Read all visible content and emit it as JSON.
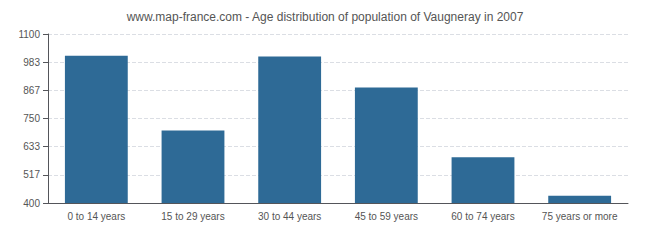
{
  "chart_data": {
    "type": "bar",
    "title": "www.map-france.com - Age distribution of population of Vaugneray in 2007",
    "categories": [
      "0 to 14 years",
      "15 to 29 years",
      "30 to 44 years",
      "45 to 59 years",
      "60 to 74 years",
      "75 years or more"
    ],
    "values": [
      1010,
      700,
      1007,
      878,
      590,
      430
    ],
    "color": "#2e6a96",
    "ylim": [
      400,
      1100
    ],
    "yticks": [
      400,
      517,
      633,
      750,
      867,
      983,
      1100
    ],
    "grid": true
  }
}
